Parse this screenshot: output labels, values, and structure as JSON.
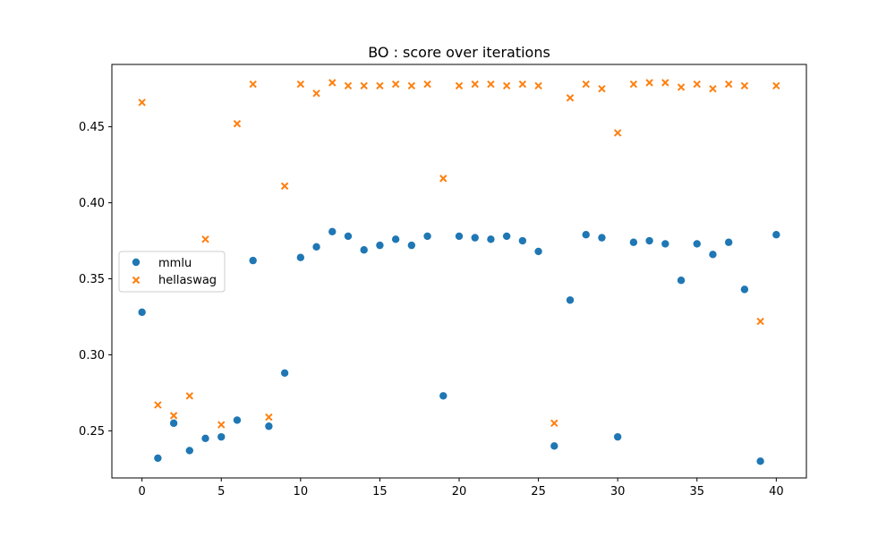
{
  "chart_data": {
    "type": "scatter",
    "title": "BO : score over iterations",
    "xlabel": "",
    "ylabel": "",
    "xlim": [
      -1.9,
      1.9
    ],
    "xrange": [
      -1.9,
      41.9
    ],
    "yrange": [
      0.219,
      0.491
    ],
    "xticks": [
      0,
      5,
      10,
      15,
      20,
      25,
      30,
      35,
      40
    ],
    "yticks": [
      0.25,
      0.3,
      0.35,
      0.4,
      0.45
    ],
    "legend_position": "center-left",
    "grid": false,
    "series": [
      {
        "name": "mmlu",
        "color": "#1f77b4",
        "marker": "circle",
        "x": [
          0,
          1,
          2,
          3,
          4,
          5,
          6,
          7,
          8,
          9,
          10,
          11,
          12,
          13,
          14,
          15,
          16,
          17,
          18,
          19,
          20,
          21,
          22,
          23,
          24,
          25,
          26,
          27,
          28,
          29,
          30,
          31,
          32,
          33,
          34,
          35,
          36,
          37,
          38,
          39,
          40
        ],
        "y": [
          0.328,
          0.232,
          0.255,
          0.237,
          0.245,
          0.246,
          0.257,
          0.362,
          0.253,
          0.288,
          0.364,
          0.371,
          0.381,
          0.378,
          0.369,
          0.372,
          0.376,
          0.372,
          0.378,
          0.273,
          0.378,
          0.377,
          0.376,
          0.378,
          0.375,
          0.368,
          0.24,
          0.336,
          0.379,
          0.377,
          0.246,
          0.374,
          0.375,
          0.373,
          0.349,
          0.373,
          0.366,
          0.374,
          0.343,
          0.23,
          0.379
        ]
      },
      {
        "name": "hellaswag",
        "color": "#ff7f0e",
        "marker": "x",
        "x": [
          0,
          1,
          2,
          3,
          4,
          5,
          6,
          7,
          8,
          9,
          10,
          11,
          12,
          13,
          14,
          15,
          16,
          17,
          18,
          19,
          20,
          21,
          22,
          23,
          24,
          25,
          26,
          27,
          28,
          29,
          30,
          31,
          32,
          33,
          34,
          35,
          36,
          37,
          38,
          39,
          40
        ],
        "y": [
          0.466,
          0.267,
          0.26,
          0.273,
          0.376,
          0.254,
          0.452,
          0.478,
          0.259,
          0.411,
          0.478,
          0.472,
          0.479,
          0.477,
          0.477,
          0.477,
          0.478,
          0.477,
          0.478,
          0.416,
          0.477,
          0.478,
          0.478,
          0.477,
          0.478,
          0.477,
          0.255,
          0.469,
          0.478,
          0.475,
          0.446,
          0.478,
          0.479,
          0.479,
          0.476,
          0.478,
          0.475,
          0.478,
          0.477,
          0.322,
          0.477
        ]
      }
    ]
  }
}
